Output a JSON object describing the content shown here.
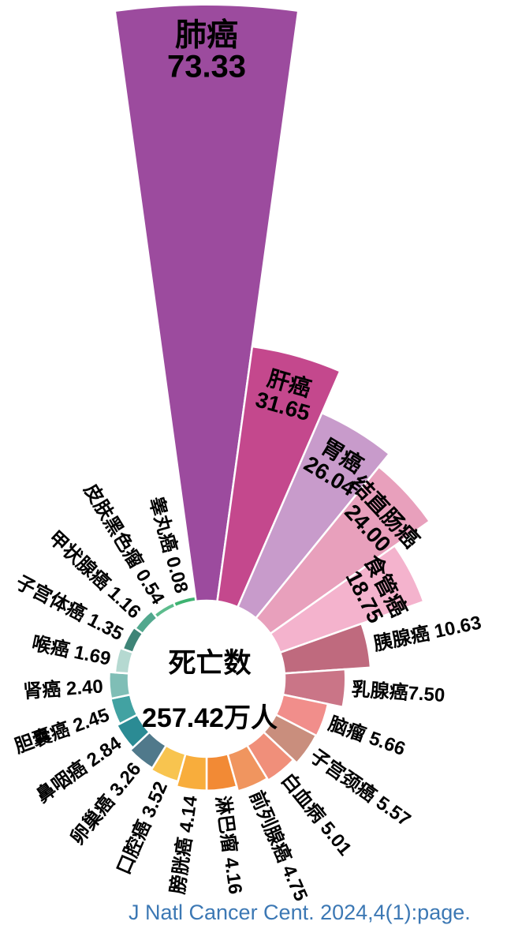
{
  "chart_data": {
    "type": "pie",
    "subtype": "nightingale-rose",
    "direction": "clockwise",
    "start_angle_deg": 0,
    "center_label": {
      "title": "死亡数",
      "total": "257.42万人"
    },
    "unit": "万人",
    "inside_label_threshold": 15,
    "items": [
      {
        "name": "肺癌",
        "value": 73.33,
        "value_label": "73.33",
        "color": "#9c4b9e"
      },
      {
        "name": "肝癌",
        "value": 31.65,
        "value_label": "31.65",
        "color": "#c4488d"
      },
      {
        "name": "胃癌",
        "value": 26.04,
        "value_label": "26.04",
        "color": "#c89bcb"
      },
      {
        "name": "结直肠癌",
        "value": 24.0,
        "value_label": "24.00",
        "color": "#e8a0bc"
      },
      {
        "name": "食管癌",
        "value": 18.75,
        "value_label": "18.75",
        "color": "#f4b3cd"
      },
      {
        "name": "胰腺癌",
        "value": 10.63,
        "value_label": "10.63",
        "color": "#bf6a7e"
      },
      {
        "name": "乳腺癌",
        "value": 7.5,
        "value_label": "7.50",
        "color": "#ca7587",
        "joiner": ""
      },
      {
        "name": "脑瘤",
        "value": 5.66,
        "value_label": "5.66",
        "color": "#f18e8b",
        "joiner": "  "
      },
      {
        "name": "子宫颈癌",
        "value": 5.57,
        "value_label": "5.57",
        "color": "#c98e7d"
      },
      {
        "name": "白血病",
        "value": 5.01,
        "value_label": "5.01",
        "color": "#f08f7a"
      },
      {
        "name": "前列腺癌",
        "value": 4.75,
        "value_label": "4.75",
        "color": "#f0955f"
      },
      {
        "name": "淋巴瘤",
        "value": 4.16,
        "value_label": "4.16",
        "color": "#f28a35"
      },
      {
        "name": "膀胱癌",
        "value": 4.14,
        "value_label": "4.14",
        "color": "#f8ad3c"
      },
      {
        "name": "口腔癌",
        "value": 3.52,
        "value_label": "3.52",
        "color": "#f8c44f"
      },
      {
        "name": "卵巢癌",
        "value": 3.26,
        "value_label": "3.26",
        "color": "#50798b"
      },
      {
        "name": "鼻咽癌",
        "value": 2.84,
        "value_label": "2.84",
        "color": "#2b8b94"
      },
      {
        "name": "胆囊癌",
        "value": 2.45,
        "value_label": "2.45",
        "color": "#42a2a2"
      },
      {
        "name": "肾癌",
        "value": 2.4,
        "value_label": "2.40",
        "color": "#7fbeb6"
      },
      {
        "name": "喉癌",
        "value": 1.69,
        "value_label": "1.69",
        "color": "#b5d9d1"
      },
      {
        "name": "子宫体癌",
        "value": 1.35,
        "value_label": "1.35",
        "color": "#3e8477"
      },
      {
        "name": "甲状腺癌",
        "value": 1.16,
        "value_label": "1.16",
        "color": "#52a88e"
      },
      {
        "name": "皮肤黑色瘤",
        "value": 0.54,
        "value_label": "0.54",
        "color": "#5dbc8d"
      },
      {
        "name": "睾丸癌",
        "value": 0.08,
        "value_label": "0.08",
        "color": "#3eb371"
      }
    ]
  },
  "citation": {
    "text": "J Natl Cancer Cent. 2024,4(1):page.",
    "color": "#3c78b4"
  }
}
